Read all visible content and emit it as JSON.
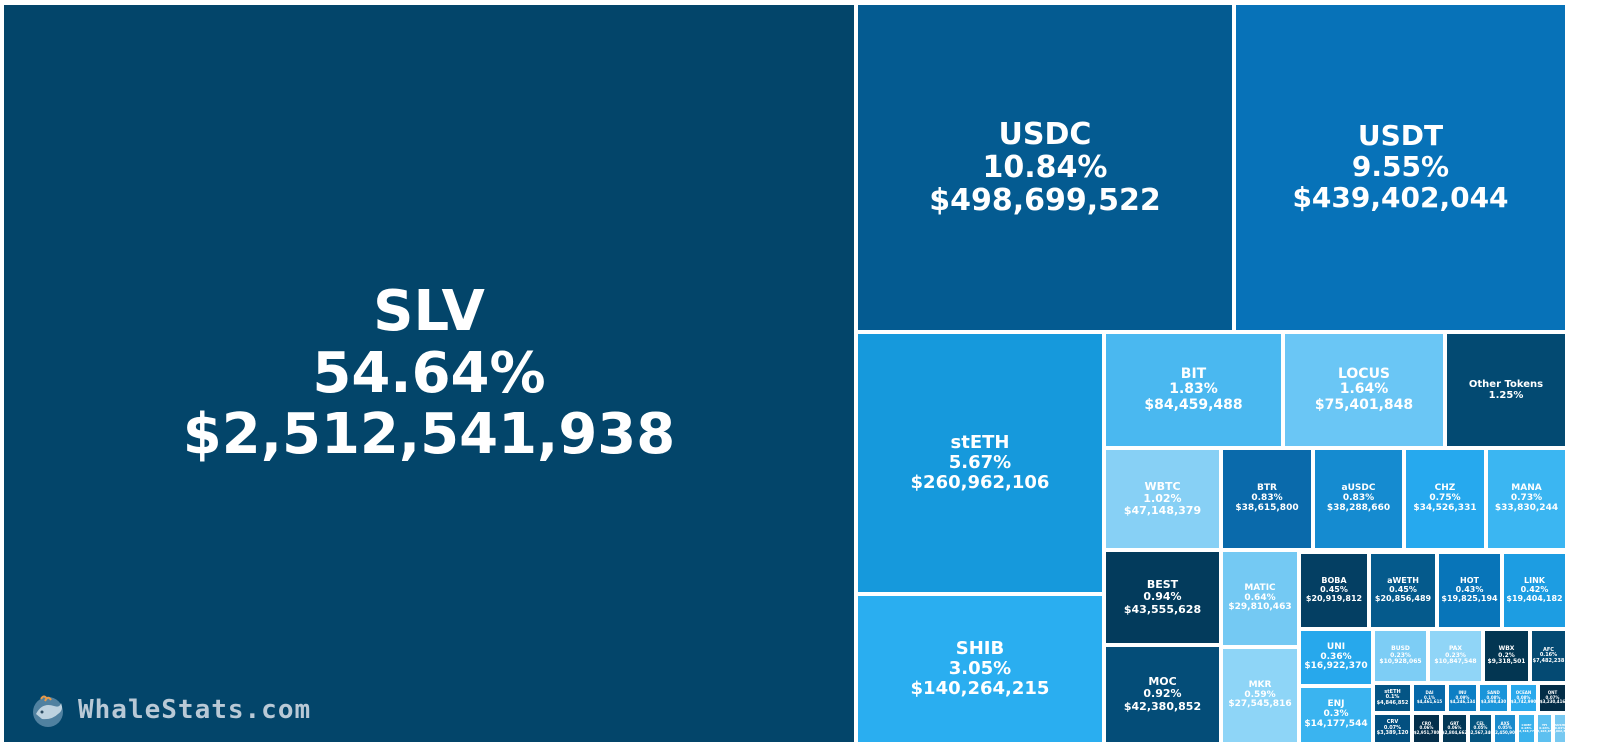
{
  "watermark": {
    "text": "WhaleStats.com",
    "icon": "whale-logo-icon"
  },
  "chart_data": {
    "type": "treemap",
    "items": [
      {
        "name": "SLV",
        "percent": "54.64%",
        "value": "$2,512,541,938",
        "color": "#03456a"
      },
      {
        "name": "USDC",
        "percent": "10.84%",
        "value": "$498,699,522",
        "color": "#045b91"
      },
      {
        "name": "USDT",
        "percent": "9.55%",
        "value": "$439,402,044",
        "color": "#0772b8"
      },
      {
        "name": "stETH",
        "percent": "5.67%",
        "value": "$260,962,106",
        "color": "#1699dc"
      },
      {
        "name": "SHIB",
        "percent": "3.05%",
        "value": "$140,264,215",
        "color": "#2aaef0"
      },
      {
        "name": "BIT",
        "percent": "1.83%",
        "value": "$84,459,488",
        "color": "#4ab8f0"
      },
      {
        "name": "LOCUS",
        "percent": "1.64%",
        "value": "$75,401,848",
        "color": "#6ac6f5"
      },
      {
        "name": "Other Tokens",
        "percent": "1.25%",
        "value": "",
        "color": "#034a72"
      },
      {
        "name": "WBTC",
        "percent": "1.02%",
        "value": "$47,148,379",
        "color": "#87d0f5"
      },
      {
        "name": "BTR",
        "percent": "0.83%",
        "value": "$38,615,800",
        "color": "#0a6aab"
      },
      {
        "name": "aUSDC",
        "percent": "0.83%",
        "value": "$38,288,660",
        "color": "#158bd0"
      },
      {
        "name": "CHZ",
        "percent": "0.75%",
        "value": "$34,526,331",
        "color": "#26a9ee"
      },
      {
        "name": "MANA",
        "percent": "0.73%",
        "value": "$33,830,244",
        "color": "#3bb6f2"
      },
      {
        "name": "BEST",
        "percent": "0.94%",
        "value": "$43,555,628",
        "color": "#033b5c"
      },
      {
        "name": "MOC",
        "percent": "0.92%",
        "value": "$42,380,852",
        "color": "#044d78"
      },
      {
        "name": "MATIC",
        "percent": "0.64%",
        "value": "$29,810,463",
        "color": "#74c9f3"
      },
      {
        "name": "MKR",
        "percent": "0.59%",
        "value": "$27,545,816",
        "color": "#8ed5f7"
      },
      {
        "name": "BOBA",
        "percent": "0.45%",
        "value": "$20,919,812",
        "color": "#043f63"
      },
      {
        "name": "aWETH",
        "percent": "0.45%",
        "value": "$20,856,489",
        "color": "#055a8c"
      },
      {
        "name": "HOT",
        "percent": "0.43%",
        "value": "$19,825,194",
        "color": "#0875b9"
      },
      {
        "name": "LINK",
        "percent": "0.42%",
        "value": "$19,404,182",
        "color": "#1d9de2"
      },
      {
        "name": "UNI",
        "percent": "0.36%",
        "value": "$16,922,370",
        "color": "#27a8ec"
      },
      {
        "name": "ENJ",
        "percent": "0.3%",
        "value": "$14,177,544",
        "color": "#3ab4f0"
      },
      {
        "name": "BUSD",
        "percent": "0.23%",
        "value": "$10,928,065",
        "color": "#7dcdf5"
      },
      {
        "name": "PAX",
        "percent": "0.23%",
        "value": "$10,847,548",
        "color": "#90d5f7"
      },
      {
        "name": "WBX",
        "percent": "0.2%",
        "value": "$9,318,501",
        "color": "#033652"
      },
      {
        "name": "AFC",
        "percent": "0.16%",
        "value": "$7,482,238",
        "color": "#044a73"
      },
      {
        "name": "stETH",
        "percent": "0.1%",
        "value": "$4,846,852",
        "color": "#045585"
      },
      {
        "name": "DAI",
        "percent": "0.1%",
        "value": "$4,461,615",
        "color": "#0668a8"
      },
      {
        "name": "INU",
        "percent": "0.09%",
        "value": "$4,246,134",
        "color": "#0d7fc4"
      },
      {
        "name": "SAND",
        "percent": "0.08%",
        "value": "$3,898,430",
        "color": "#1a95da"
      },
      {
        "name": "OCEAN",
        "percent": "0.08%",
        "value": "$3,742,990",
        "color": "#2aa9ec"
      },
      {
        "name": "CRV",
        "percent": "0.07%",
        "value": "$3,389,120",
        "color": "#035080"
      },
      {
        "name": "QNT",
        "percent": "0.07%",
        "value": "$3,230,416",
        "color": "#032d47"
      },
      {
        "name": "CRO",
        "percent": "0.06%",
        "value": "$2,951,780",
        "color": "#042f4b"
      },
      {
        "name": "GRT",
        "percent": "0.06%",
        "value": "$2,804,662",
        "color": "#043856"
      },
      {
        "name": "CEL",
        "percent": "0.05%",
        "value": "$2,567,340",
        "color": "#055580"
      },
      {
        "name": "AXS",
        "percent": "0.05%",
        "value": "$2,450,906",
        "color": "#1b8bcc"
      },
      {
        "name": "COMP",
        "percent": "0.05%",
        "value": "$2,318,772",
        "color": "#3ab2ec"
      },
      {
        "name": "YFI",
        "percent": "0.04%",
        "value": "$2,104,655",
        "color": "#5dc0f0"
      },
      {
        "name": "SUSHI",
        "percent": "0.04%",
        "value": "$1,992,310",
        "color": "#78c9f1"
      }
    ]
  }
}
